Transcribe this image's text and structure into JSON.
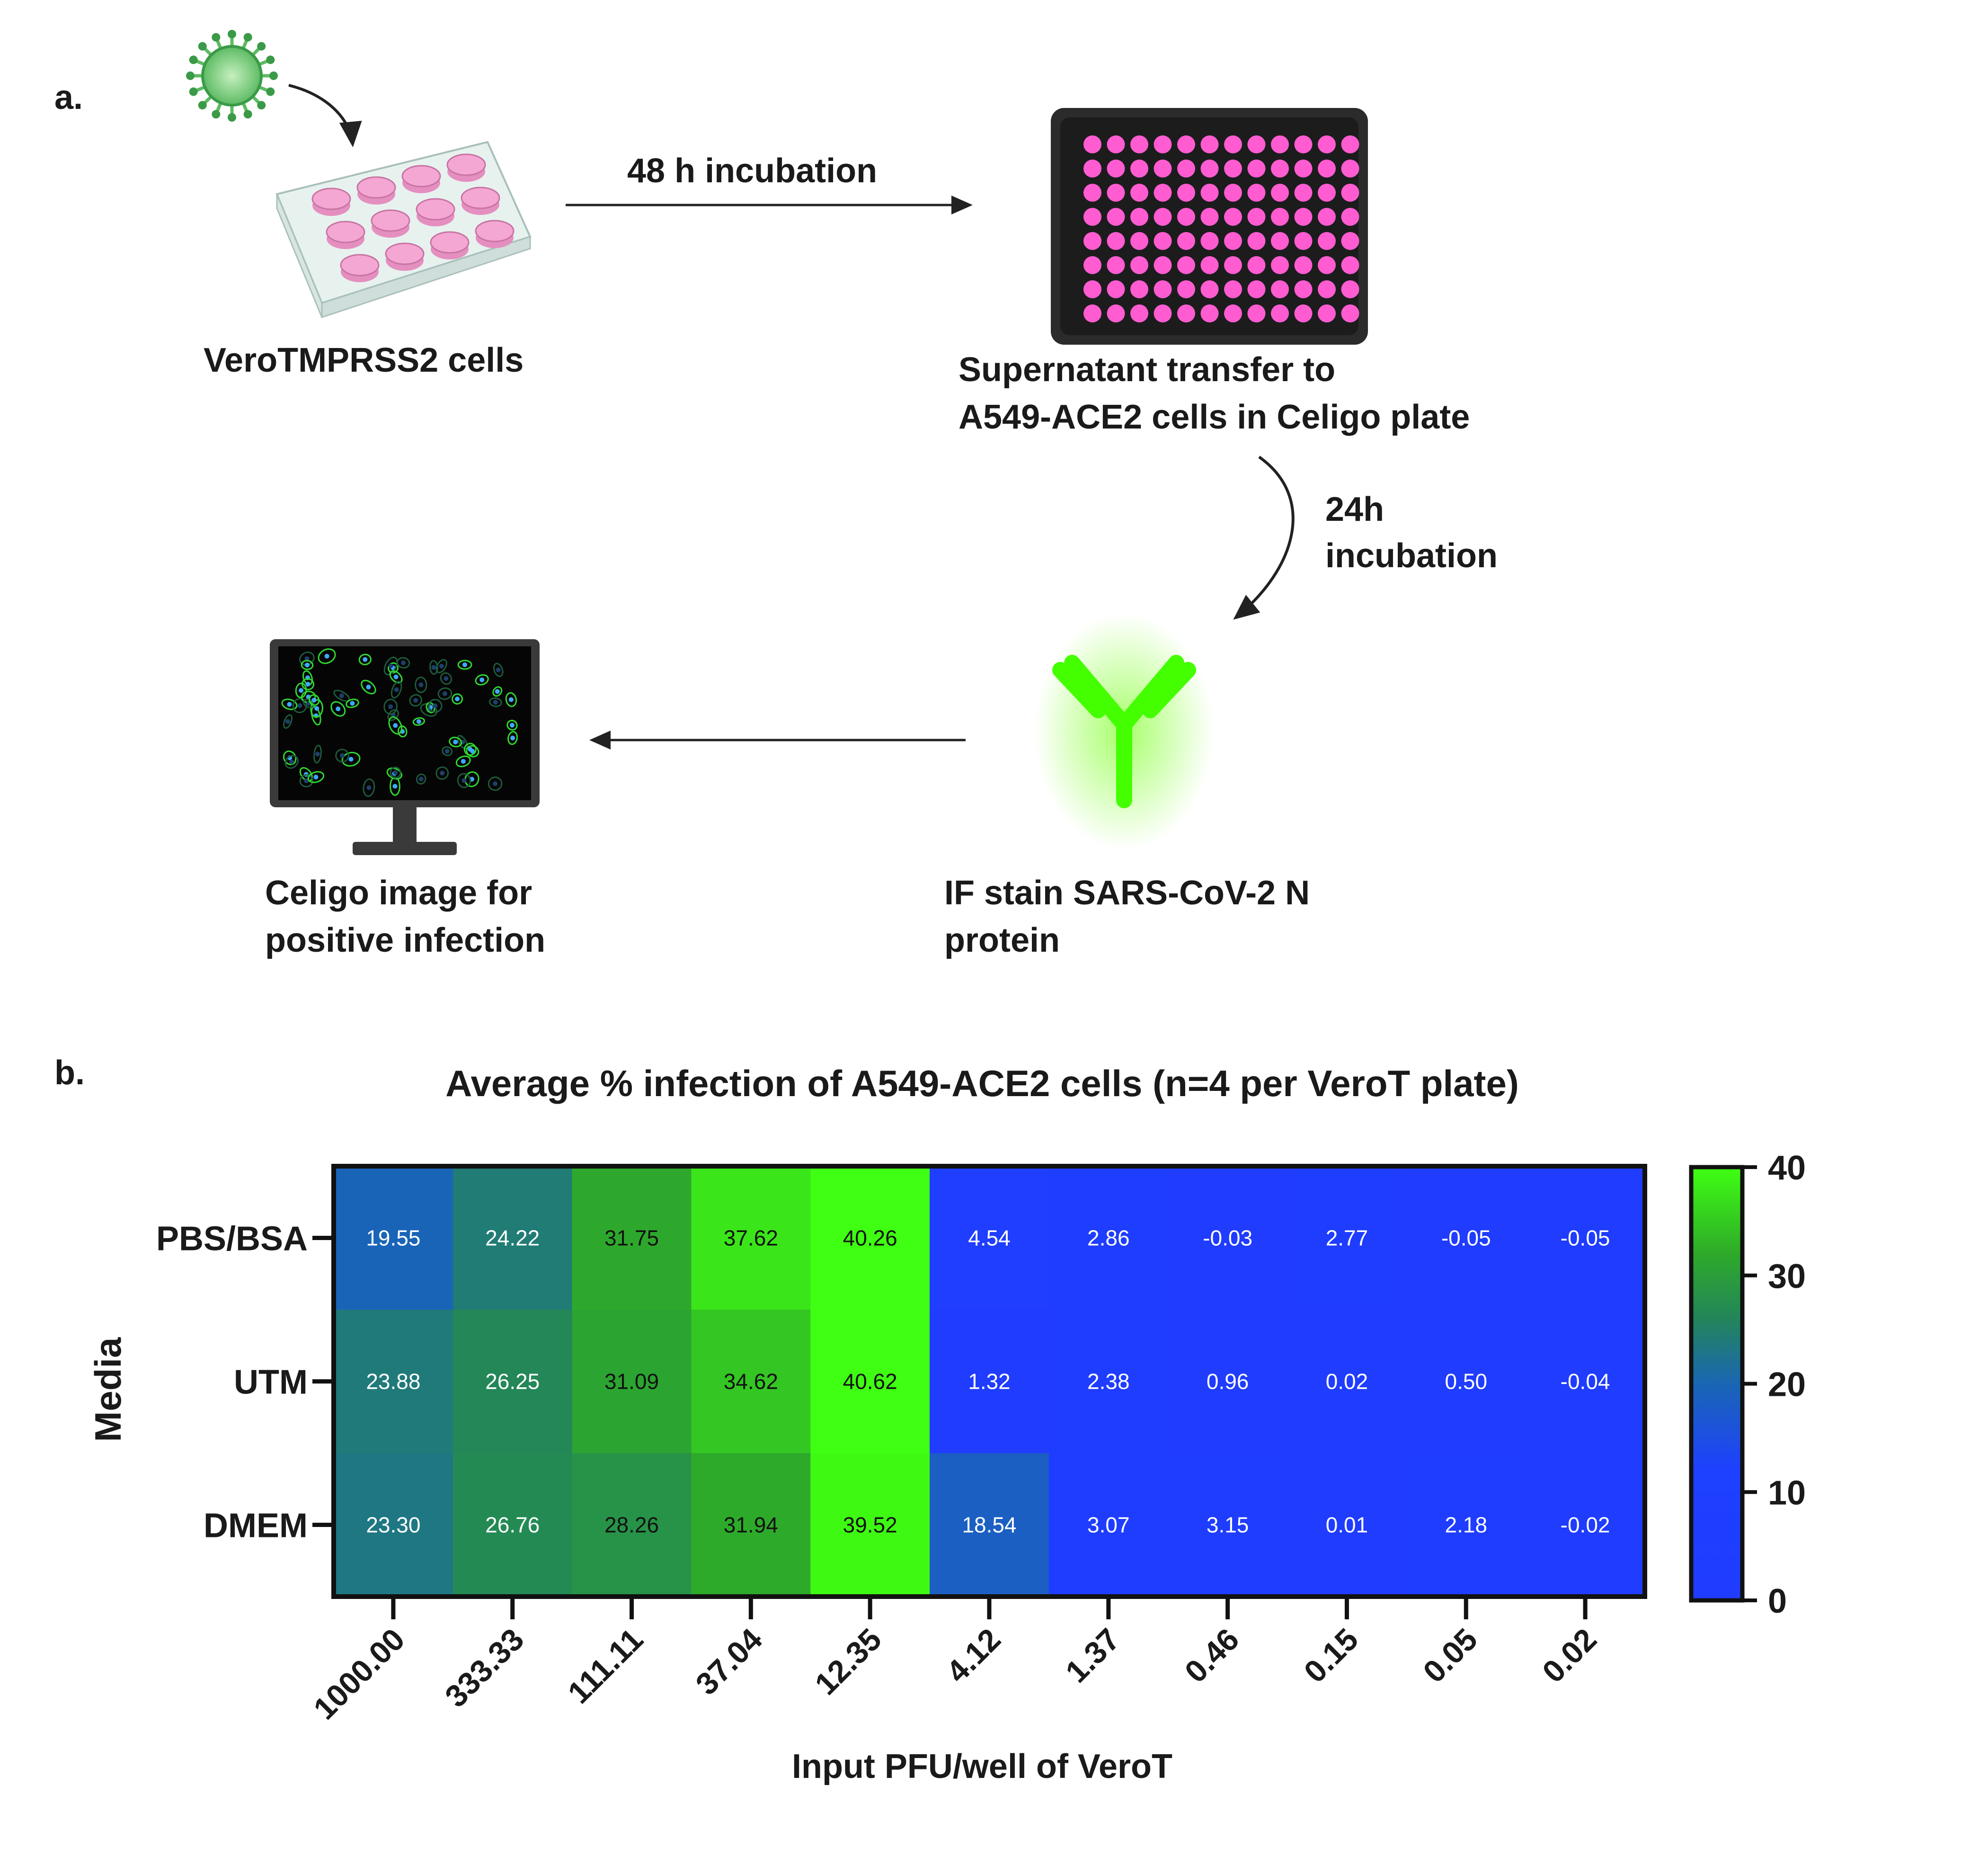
{
  "panel_a": {
    "label": "a.",
    "steps": {
      "vero_cells": "VeroTMPRSS2 cells",
      "incubation_48": "48 h incubation",
      "supernatant_line1": "Supernatant transfer to",
      "supernatant_line2": "A549-ACE2 cells in Celigo plate",
      "incubation_24_line1": "24h",
      "incubation_24_line2": "incubation",
      "if_stain_line1": "IF stain SARS-CoV-2 N",
      "if_stain_line2": "protein",
      "celigo_line1": "Celigo image for",
      "celigo_line2": "positive infection"
    },
    "icons": [
      "virus-icon",
      "well-plate-12-icon",
      "well-plate-96-icon",
      "antibody-icon",
      "monitor-icon"
    ],
    "colors": {
      "virus": "#5dbb63",
      "plate_well": "#f5a7d3",
      "plate96_well": "#ff5cd2",
      "antibody": "#44ff00",
      "cell": "#2fd82f",
      "nucleus": "#3fa9ff"
    }
  },
  "panel_b": {
    "label": "b."
  },
  "chart_data": {
    "type": "heatmap",
    "title": "Average % infection of A549-ACE2 cells (n=4 per VeroT plate)",
    "xlabel": "Input PFU/well of VeroT",
    "ylabel": "Media",
    "x": [
      "1000.00",
      "333.33",
      "111.11",
      "37.04",
      "12.35",
      "4.12",
      "1.37",
      "0.46",
      "0.15",
      "0.05",
      "0.02"
    ],
    "y": [
      "PBS/BSA",
      "UTM",
      "DMEM"
    ],
    "values": [
      [
        19.55,
        24.22,
        31.75,
        37.62,
        40.26,
        4.54,
        2.86,
        -0.03,
        2.77,
        -0.05,
        -0.05
      ],
      [
        23.88,
        26.25,
        31.09,
        34.62,
        40.62,
        1.32,
        2.38,
        0.96,
        0.02,
        0.5,
        -0.04
      ],
      [
        23.3,
        26.76,
        28.26,
        31.94,
        39.52,
        18.54,
        3.07,
        3.15,
        0.01,
        2.18,
        -0.02
      ]
    ],
    "value_labels": [
      [
        "19.55",
        "24.22",
        "31.75",
        "37.62",
        "40.26",
        "4.54",
        "2.86",
        "-0.03",
        "2.77",
        "-0.05",
        "-0.05"
      ],
      [
        "23.88",
        "26.25",
        "31.09",
        "34.62",
        "40.62",
        "1.32",
        "2.38",
        "0.96",
        "0.02",
        "0.50",
        "-0.04"
      ],
      [
        "23.30",
        "26.76",
        "28.26",
        "31.94",
        "39.52",
        "18.54",
        "3.07",
        "3.15",
        "0.01",
        "2.18",
        "-0.02"
      ]
    ],
    "colorbar": {
      "ticks": [
        "40",
        "30",
        "20",
        "10",
        "0"
      ],
      "range": [
        0,
        40
      ]
    },
    "colorscale": [
      "#1f3cff",
      "#1e40ff",
      "#1a66b4",
      "#23855a",
      "#2eaa2a",
      "#3fff12"
    ],
    "grid": false
  }
}
